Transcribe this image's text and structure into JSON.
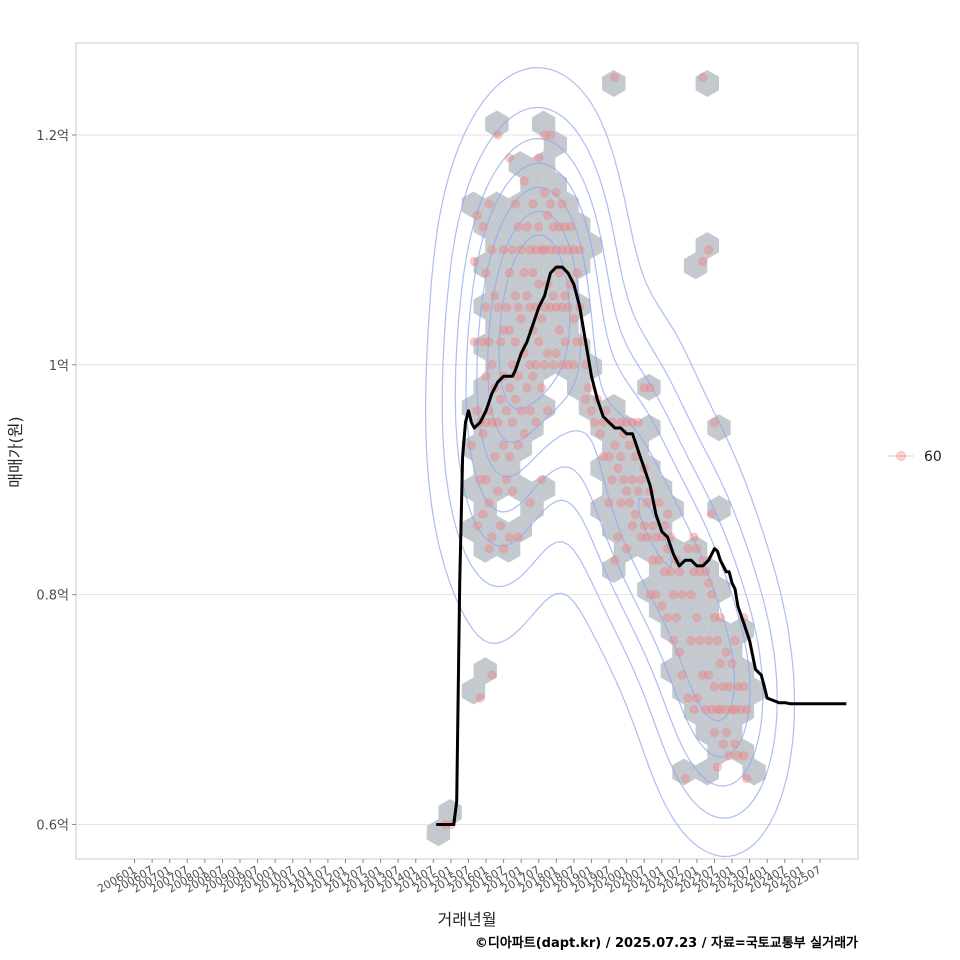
{
  "chart_data": {
    "type": "scatter",
    "xlabel": "거래년월",
    "ylabel": "매매가(원)",
    "caption": "©디아파트(dapt.kr) / 2025.07.23 / 자료=국토교통부 실거래가",
    "y_ticks": [
      {
        "value": 0.6,
        "label": "0.6억"
      },
      {
        "value": 0.8,
        "label": "0.8억"
      },
      {
        "value": 1.0,
        "label": "1억"
      },
      {
        "value": 1.2,
        "label": "1.2억"
      }
    ],
    "ylim": [
      0.57,
      1.28
    ],
    "x_tick_labels": [
      "200601",
      "200607",
      "200701",
      "200707",
      "200801",
      "200807",
      "200901",
      "200907",
      "201001",
      "201007",
      "201101",
      "201107",
      "201201",
      "201207",
      "201301",
      "201307",
      "201401",
      "201407",
      "201501",
      "201507",
      "201601",
      "201607",
      "201701",
      "201707",
      "201801",
      "201807",
      "201901",
      "201907",
      "202001",
      "202007",
      "202101",
      "202107",
      "202201",
      "202207",
      "202301",
      "202307",
      "202401",
      "202407",
      "202501",
      "202507"
    ],
    "xlim_months": [
      -20,
      247
    ],
    "legend": {
      "label": "60",
      "position": "right"
    },
    "colors": {
      "points": "#f08080",
      "line": "#000000",
      "hex": "#b8bfc6",
      "contour": "#8fa8ee"
    },
    "series": [
      {
        "name": "moving_average",
        "x_months": [
          103,
          105,
          109,
          110,
          111,
          112,
          113,
          114,
          115,
          116,
          118,
          120,
          122,
          124,
          126,
          128,
          129,
          130,
          132,
          134,
          136,
          138,
          140,
          142,
          144,
          146,
          148,
          150,
          152,
          154,
          156,
          158,
          160,
          162,
          164,
          166,
          168,
          170,
          172,
          174,
          176,
          178,
          180,
          182,
          184,
          186,
          188,
          190,
          192,
          194,
          196,
          198,
          199,
          200,
          201,
          202,
          203,
          204,
          205,
          206,
          208,
          210,
          212,
          214,
          215,
          216,
          218,
          219,
          220,
          222,
          224,
          226,
          228,
          230,
          232,
          234,
          235,
          236,
          238,
          240,
          241,
          242,
          243
        ],
        "values": [
          0.6,
          0.6,
          0.6,
          0.62,
          0.81,
          0.92,
          0.95,
          0.96,
          0.95,
          0.945,
          0.95,
          0.96,
          0.975,
          0.985,
          0.99,
          0.99,
          0.99,
          0.995,
          1.01,
          1.02,
          1.035,
          1.05,
          1.06,
          1.08,
          1.085,
          1.085,
          1.08,
          1.07,
          1.05,
          1.02,
          0.99,
          0.97,
          0.955,
          0.95,
          0.945,
          0.945,
          0.94,
          0.94,
          0.925,
          0.91,
          0.895,
          0.87,
          0.855,
          0.85,
          0.835,
          0.825,
          0.83,
          0.83,
          0.825,
          0.825,
          0.83,
          0.84,
          0.838,
          0.83,
          0.825,
          0.82,
          0.82,
          0.81,
          0.805,
          0.79,
          0.775,
          0.76,
          0.735,
          0.73,
          0.72,
          0.71,
          0.708,
          0.707,
          0.706,
          0.706,
          0.705,
          0.705,
          0.705,
          0.705,
          0.705,
          0.705,
          0.705,
          0.705,
          0.705,
          0.705,
          0.705,
          0.705,
          0.705
        ]
      },
      {
        "name": "60",
        "points": [
          [
            106,
            0.6
          ],
          [
            108,
            0.6
          ],
          [
            115,
            0.93
          ],
          [
            116,
            1.09
          ],
          [
            116,
            1.02
          ],
          [
            117,
            1.13
          ],
          [
            117,
            0.96
          ],
          [
            117,
            0.86
          ],
          [
            118,
            0.95
          ],
          [
            118,
            0.9
          ],
          [
            118,
            0.71
          ],
          [
            119,
            1.12
          ],
          [
            119,
            1.02
          ],
          [
            119,
            0.94
          ],
          [
            119,
            0.87
          ],
          [
            120,
            1.08
          ],
          [
            120,
            1.05
          ],
          [
            120,
            0.99
          ],
          [
            120,
            0.95
          ],
          [
            120,
            0.9
          ],
          [
            121,
            1.14
          ],
          [
            121,
            1.02
          ],
          [
            121,
            0.96
          ],
          [
            121,
            0.88
          ],
          [
            121,
            0.84
          ],
          [
            122,
            1.1
          ],
          [
            122,
            1.0
          ],
          [
            122,
            0.95
          ],
          [
            122,
            0.85
          ],
          [
            122,
            0.73
          ],
          [
            123,
            1.06
          ],
          [
            123,
            0.98
          ],
          [
            123,
            0.92
          ],
          [
            124,
            1.2
          ],
          [
            124,
            1.05
          ],
          [
            124,
            0.95
          ],
          [
            124,
            0.89
          ],
          [
            125,
            1.02
          ],
          [
            125,
            0.97
          ],
          [
            125,
            0.86
          ],
          [
            126,
            1.1
          ],
          [
            126,
            1.03
          ],
          [
            126,
            0.99
          ],
          [
            126,
            0.93
          ],
          [
            126,
            0.84
          ],
          [
            127,
            1.05
          ],
          [
            127,
            0.96
          ],
          [
            127,
            0.9
          ],
          [
            128,
            1.18
          ],
          [
            128,
            1.08
          ],
          [
            128,
            1.03
          ],
          [
            128,
            0.98
          ],
          [
            128,
            0.92
          ],
          [
            128,
            0.85
          ],
          [
            129,
            1.1
          ],
          [
            129,
            1.0
          ],
          [
            129,
            0.95
          ],
          [
            129,
            0.89
          ],
          [
            130,
            1.14
          ],
          [
            130,
            1.06
          ],
          [
            130,
            1.02
          ],
          [
            130,
            0.97
          ],
          [
            131,
            1.12
          ],
          [
            131,
            1.05
          ],
          [
            131,
            0.99
          ],
          [
            131,
            0.93
          ],
          [
            131,
            0.85
          ],
          [
            132,
            1.1
          ],
          [
            132,
            1.04
          ],
          [
            132,
            0.96
          ],
          [
            133,
            1.16
          ],
          [
            133,
            1.08
          ],
          [
            133,
            1.01
          ],
          [
            133,
            0.94
          ],
          [
            134,
            1.12
          ],
          [
            134,
            1.06
          ],
          [
            134,
            0.98
          ],
          [
            135,
            1.1
          ],
          [
            135,
            1.05
          ],
          [
            135,
            1.0
          ],
          [
            135,
            0.96
          ],
          [
            135,
            0.88
          ],
          [
            136,
            1.14
          ],
          [
            136,
            1.08
          ],
          [
            136,
            1.03
          ],
          [
            136,
            0.99
          ],
          [
            137,
            1.1
          ],
          [
            137,
            1.05
          ],
          [
            137,
            1.0
          ],
          [
            137,
            0.95
          ],
          [
            138,
            1.18
          ],
          [
            138,
            1.12
          ],
          [
            138,
            1.07
          ],
          [
            138,
            1.02
          ],
          [
            139,
            1.1
          ],
          [
            139,
            1.04
          ],
          [
            139,
            0.98
          ],
          [
            139,
            0.9
          ],
          [
            140,
            1.2
          ],
          [
            140,
            1.15
          ],
          [
            140,
            1.1
          ],
          [
            140,
            1.05
          ],
          [
            140,
            1.0
          ],
          [
            141,
            1.13
          ],
          [
            141,
            1.07
          ],
          [
            141,
            1.01
          ],
          [
            141,
            0.96
          ],
          [
            142,
            1.2
          ],
          [
            142,
            1.14
          ],
          [
            142,
            1.1
          ],
          [
            142,
            1.05
          ],
          [
            143,
            1.12
          ],
          [
            143,
            1.06
          ],
          [
            143,
            1.0
          ],
          [
            144,
            1.15
          ],
          [
            144,
            1.1
          ],
          [
            144,
            1.05
          ],
          [
            144,
            1.01
          ],
          [
            145,
            1.12
          ],
          [
            145,
            1.08
          ],
          [
            145,
            1.03
          ],
          [
            146,
            1.14
          ],
          [
            146,
            1.1
          ],
          [
            146,
            1.05
          ],
          [
            146,
            1.0
          ],
          [
            147,
            1.12
          ],
          [
            147,
            1.06
          ],
          [
            147,
            1.02
          ],
          [
            148,
            1.1
          ],
          [
            148,
            1.05
          ],
          [
            148,
            1.0
          ],
          [
            149,
            1.12
          ],
          [
            149,
            1.07
          ],
          [
            150,
            1.1
          ],
          [
            150,
            1.04
          ],
          [
            150,
            1.0
          ],
          [
            151,
            1.08
          ],
          [
            151,
            1.02
          ],
          [
            152,
            1.1
          ],
          [
            152,
            1.05
          ],
          [
            153,
            1.02
          ],
          [
            154,
            1.0
          ],
          [
            154,
            0.97
          ],
          [
            155,
            0.98
          ],
          [
            156,
            0.96
          ],
          [
            157,
            0.95
          ],
          [
            158,
            0.97
          ],
          [
            159,
            0.94
          ],
          [
            160,
            0.95
          ],
          [
            160,
            0.92
          ],
          [
            161,
            0.96
          ],
          [
            162,
            0.92
          ],
          [
            162,
            0.88
          ],
          [
            163,
            0.95
          ],
          [
            163,
            0.9
          ],
          [
            164,
            1.25
          ],
          [
            164,
            0.93
          ],
          [
            164,
            0.83
          ],
          [
            165,
            0.91
          ],
          [
            165,
            0.85
          ],
          [
            166,
            0.95
          ],
          [
            166,
            0.92
          ],
          [
            166,
            0.88
          ],
          [
            167,
            0.94
          ],
          [
            167,
            0.9
          ],
          [
            168,
            0.95
          ],
          [
            168,
            0.89
          ],
          [
            168,
            0.84
          ],
          [
            169,
            0.93
          ],
          [
            169,
            0.88
          ],
          [
            170,
            0.95
          ],
          [
            170,
            0.9
          ],
          [
            170,
            0.86
          ],
          [
            171,
            0.92
          ],
          [
            171,
            0.87
          ],
          [
            172,
            0.95
          ],
          [
            172,
            0.89
          ],
          [
            173,
            0.9
          ],
          [
            173,
            0.85
          ],
          [
            174,
            0.98
          ],
          [
            174,
            0.91
          ],
          [
            174,
            0.86
          ],
          [
            175,
            0.88
          ],
          [
            175,
            0.85
          ],
          [
            176,
            0.98
          ],
          [
            176,
            0.89
          ],
          [
            176,
            0.8
          ],
          [
            177,
            0.86
          ],
          [
            177,
            0.83
          ],
          [
            178,
            0.8
          ],
          [
            178,
            0.85
          ],
          [
            179,
            0.88
          ],
          [
            179,
            0.83
          ],
          [
            180,
            0.85
          ],
          [
            180,
            0.79
          ],
          [
            181,
            0.86
          ],
          [
            181,
            0.82
          ],
          [
            182,
            0.87
          ],
          [
            182,
            0.84
          ],
          [
            182,
            0.78
          ],
          [
            183,
            0.85
          ],
          [
            183,
            0.82
          ],
          [
            184,
            0.8
          ],
          [
            184,
            0.76
          ],
          [
            185,
            0.83
          ],
          [
            185,
            0.78
          ],
          [
            186,
            0.82
          ],
          [
            186,
            0.75
          ],
          [
            187,
            0.8
          ],
          [
            187,
            0.73
          ],
          [
            188,
            0.64
          ],
          [
            189,
            0.84
          ],
          [
            189,
            0.71
          ],
          [
            190,
            0.8
          ],
          [
            190,
            0.76
          ],
          [
            191,
            0.85
          ],
          [
            191,
            0.82
          ],
          [
            191,
            0.7
          ],
          [
            192,
            0.84
          ],
          [
            192,
            0.78
          ],
          [
            192,
            0.71
          ],
          [
            193,
            0.82
          ],
          [
            193,
            0.76
          ],
          [
            194,
            1.25
          ],
          [
            194,
            1.09
          ],
          [
            194,
            0.83
          ],
          [
            194,
            0.73
          ],
          [
            195,
            0.82
          ],
          [
            195,
            0.7
          ],
          [
            196,
            1.1
          ],
          [
            196,
            0.81
          ],
          [
            196,
            0.76
          ],
          [
            196,
            0.73
          ],
          [
            197,
            0.87
          ],
          [
            197,
            0.8
          ],
          [
            197,
            0.7
          ],
          [
            198,
            0.95
          ],
          [
            198,
            0.78
          ],
          [
            198,
            0.72
          ],
          [
            198,
            0.68
          ],
          [
            199,
            0.76
          ],
          [
            199,
            0.7
          ],
          [
            199,
            0.65
          ],
          [
            200,
            0.78
          ],
          [
            200,
            0.74
          ],
          [
            200,
            0.7
          ],
          [
            201,
            0.72
          ],
          [
            201,
            0.67
          ],
          [
            202,
            0.75
          ],
          [
            202,
            0.7
          ],
          [
            202,
            0.68
          ],
          [
            203,
            0.72
          ],
          [
            203,
            0.66
          ],
          [
            204,
            0.74
          ],
          [
            204,
            0.7
          ],
          [
            205,
            0.76
          ],
          [
            205,
            0.7
          ],
          [
            205,
            0.67
          ],
          [
            206,
            0.72
          ],
          [
            206,
            0.66
          ],
          [
            207,
            0.7
          ],
          [
            208,
            0.72
          ],
          [
            208,
            0.78
          ],
          [
            208,
            0.66
          ],
          [
            209,
            0.7
          ],
          [
            209,
            0.64
          ]
        ]
      }
    ]
  }
}
